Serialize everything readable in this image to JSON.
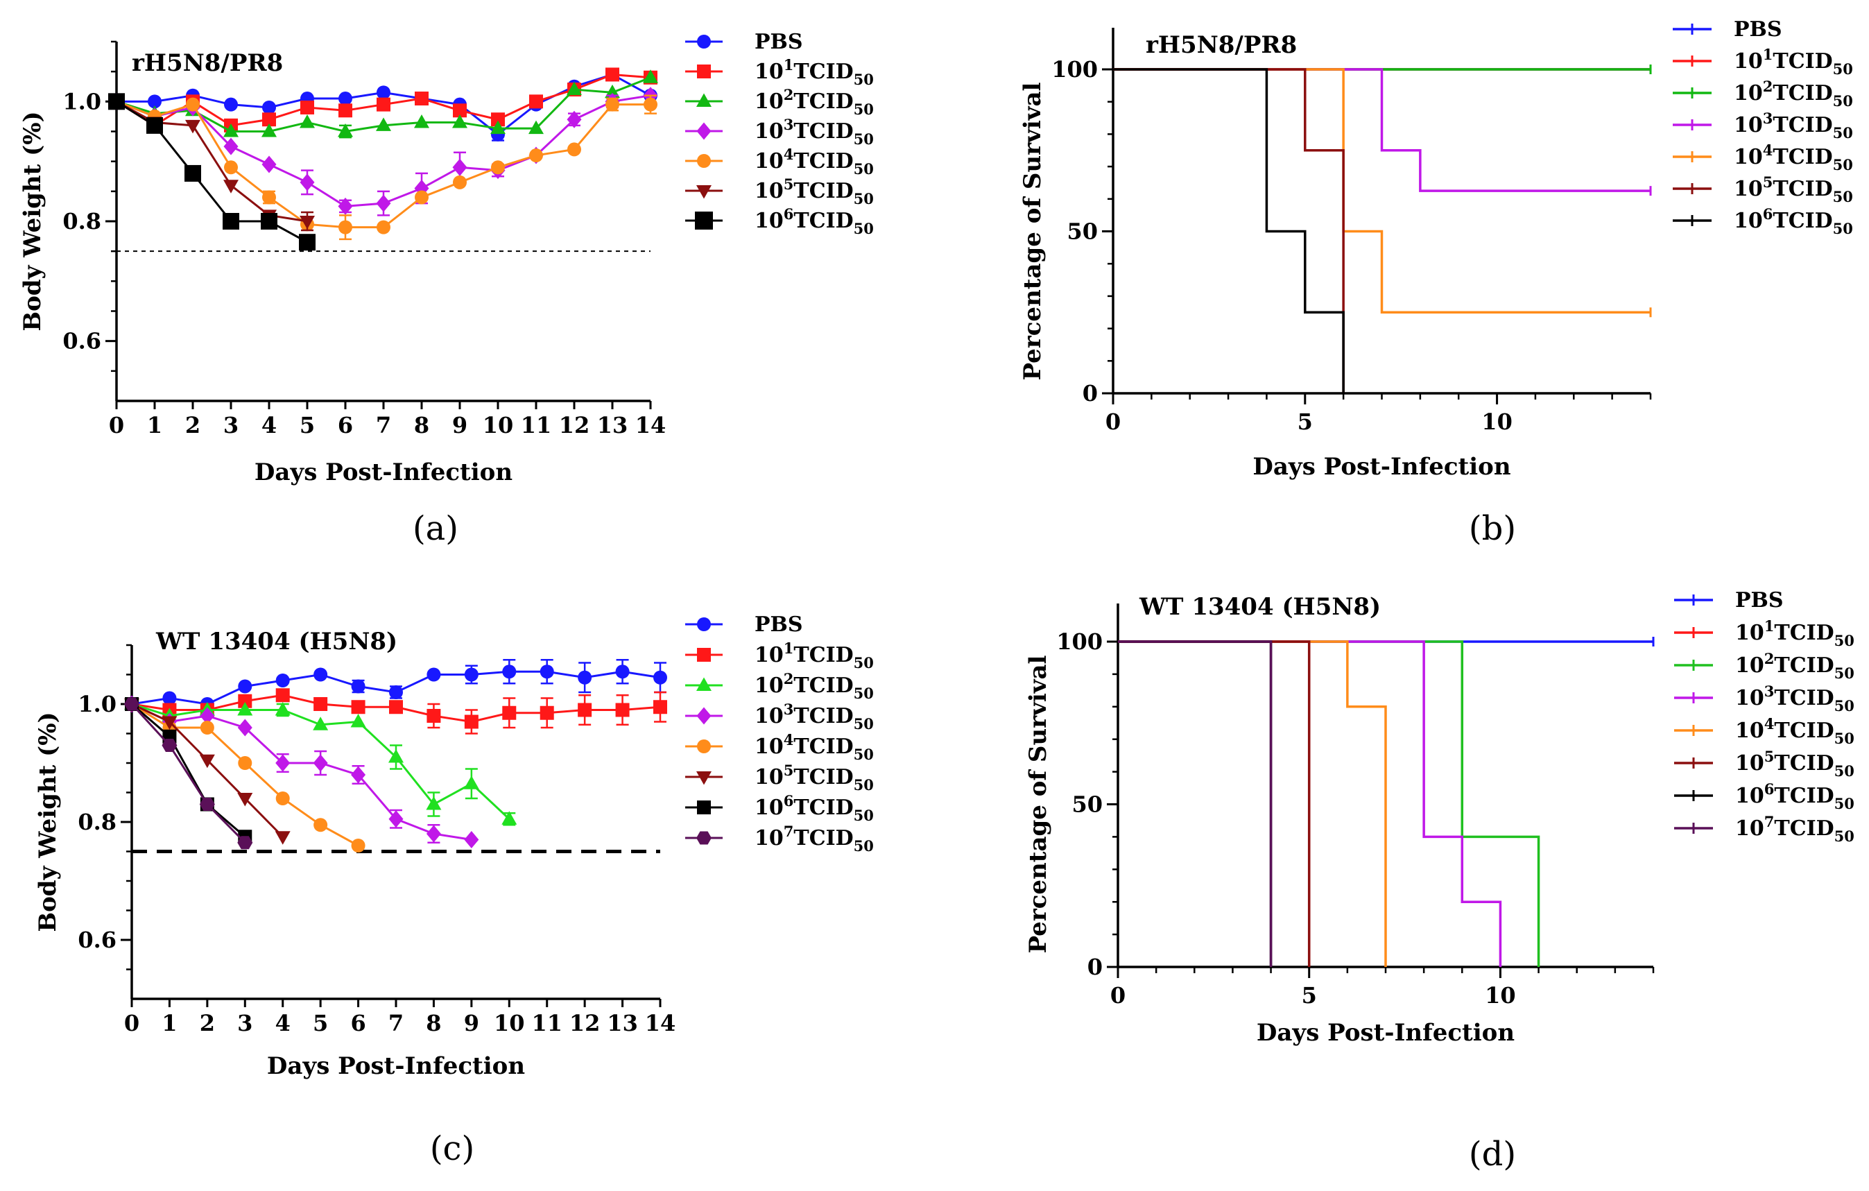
{
  "chart_data": [
    {
      "panel": "(a)",
      "type": "line",
      "title": "rH5N8/PR8",
      "xlabel": "Days Post-Infection",
      "ylabel": "Body Weight (%)",
      "xlim": [
        0,
        14
      ],
      "ylim": [
        0.5,
        1.1
      ],
      "xticks": [
        0,
        1,
        2,
        3,
        4,
        5,
        6,
        7,
        8,
        9,
        10,
        11,
        12,
        13,
        14
      ],
      "yticks": [
        0.6,
        0.8,
        1.0
      ],
      "threshold": 0.75,
      "series": [
        {
          "name": "PBS",
          "base": "",
          "sup": "",
          "sub": "",
          "color": "#1818ff",
          "marker": "circle",
          "x": [
            0,
            1,
            2,
            3,
            4,
            5,
            6,
            7,
            8,
            9,
            10,
            11,
            12,
            13,
            14
          ],
          "y": [
            1.0,
            1.0,
            1.01,
            0.995,
            0.99,
            1.005,
            1.005,
            1.015,
            1.005,
            0.995,
            0.945,
            0.995,
            1.025,
            1.045,
            1.01
          ],
          "err": [
            0,
            0,
            0,
            0,
            0,
            0,
            0,
            0,
            0,
            0,
            0.01,
            0,
            0,
            0,
            0
          ]
        },
        {
          "name": "10^1 TCID50",
          "base": "10",
          "sup": "1",
          "sub": "50",
          "color": "#ff1818",
          "marker": "square",
          "x": [
            0,
            1,
            2,
            3,
            4,
            5,
            6,
            7,
            8,
            9,
            10,
            11,
            12,
            13,
            14
          ],
          "y": [
            1.0,
            0.96,
            1.0,
            0.96,
            0.97,
            0.99,
            0.985,
            0.995,
            1.005,
            0.985,
            0.97,
            1.0,
            1.02,
            1.045,
            1.04
          ],
          "err": [
            0,
            0,
            0,
            0,
            0,
            0,
            0,
            0,
            0,
            0,
            0,
            0,
            0,
            0,
            0
          ]
        },
        {
          "name": "10^2 TCID50",
          "base": "10",
          "sup": "2",
          "sub": "50",
          "color": "#12b812",
          "marker": "triangle-up",
          "x": [
            0,
            1,
            2,
            3,
            4,
            5,
            6,
            7,
            8,
            9,
            10,
            11,
            12,
            13,
            14
          ],
          "y": [
            1.0,
            0.98,
            0.985,
            0.95,
            0.95,
            0.965,
            0.95,
            0.96,
            0.965,
            0.965,
            0.955,
            0.955,
            1.02,
            1.015,
            1.04
          ],
          "err": [
            0,
            0,
            0,
            0,
            0,
            0,
            0.01,
            0,
            0,
            0,
            0,
            0,
            0,
            0,
            0
          ]
        },
        {
          "name": "10^3 TCID50",
          "base": "10",
          "sup": "3",
          "sub": "50",
          "color": "#c018e8",
          "marker": "diamond",
          "x": [
            0,
            1,
            2,
            3,
            4,
            5,
            6,
            7,
            8,
            9,
            10,
            11,
            12,
            13,
            14
          ],
          "y": [
            1.0,
            0.975,
            0.99,
            0.925,
            0.895,
            0.865,
            0.825,
            0.83,
            0.855,
            0.89,
            0.885,
            0.91,
            0.97,
            1.0,
            1.01
          ],
          "err": [
            0,
            0,
            0,
            0,
            0,
            0.02,
            0.01,
            0.02,
            0.025,
            0.025,
            0.01,
            0,
            0.01,
            0.01,
            0
          ]
        },
        {
          "name": "10^4 TCID50",
          "base": "10",
          "sup": "4",
          "sub": "50",
          "color": "#ff8c1a",
          "marker": "circle",
          "x": [
            0,
            1,
            2,
            3,
            4,
            5,
            6,
            7,
            8,
            9,
            10,
            11,
            12,
            13,
            14
          ],
          "y": [
            1.0,
            0.975,
            0.995,
            0.89,
            0.84,
            0.795,
            0.79,
            0.79,
            0.84,
            0.865,
            0.89,
            0.91,
            0.92,
            0.995,
            0.995
          ],
          "err": [
            0,
            0,
            0,
            0,
            0.01,
            0,
            0.02,
            0,
            0,
            0,
            0,
            0,
            0,
            0.01,
            0.015
          ]
        },
        {
          "name": "10^5 TCID50",
          "base": "10",
          "sup": "5",
          "sub": "50",
          "color": "#8b0f0f",
          "marker": "triangle-down",
          "x": [
            0,
            1,
            2,
            3,
            4,
            5
          ],
          "y": [
            1.0,
            0.965,
            0.96,
            0.86,
            0.81,
            0.8
          ],
          "err": [
            0,
            0,
            0,
            0,
            0,
            0.015
          ]
        },
        {
          "name": "10^6 TCID50",
          "base": "10",
          "sup": "6",
          "sub": "50",
          "color": "#000000",
          "marker": "square",
          "x": [
            0,
            1,
            2,
            3,
            4,
            5
          ],
          "y": [
            1.0,
            0.96,
            0.88,
            0.8,
            0.8,
            0.765
          ],
          "err": [
            0,
            0,
            0,
            0,
            0,
            0
          ]
        }
      ]
    },
    {
      "panel": "(b)",
      "type": "line",
      "title": "rH5N8/PR8",
      "xlabel": "Days Post-Infection",
      "ylabel": "Percentage of Survival",
      "xlim": [
        0,
        14
      ],
      "ylim": [
        0,
        100
      ],
      "xticks": [
        0,
        5,
        10
      ],
      "yticks": [
        0,
        50,
        100
      ],
      "series": [
        {
          "name": "PBS",
          "base": "",
          "sup": "",
          "sub": "",
          "color": "#1818ff",
          "steps": [
            [
              0,
              100
            ],
            [
              14,
              100
            ]
          ]
        },
        {
          "name": "10^1 TCID50",
          "base": "10",
          "sup": "1",
          "sub": "50",
          "color": "#ff1818",
          "steps": [
            [
              0,
              100
            ],
            [
              14,
              100
            ]
          ]
        },
        {
          "name": "10^2 TCID50",
          "base": "10",
          "sup": "2",
          "sub": "50",
          "color": "#12b812",
          "steps": [
            [
              0,
              100
            ],
            [
              14,
              100
            ]
          ]
        },
        {
          "name": "10^3 TCID50",
          "base": "10",
          "sup": "3",
          "sub": "50",
          "color": "#c018e8",
          "steps": [
            [
              0,
              100
            ],
            [
              7,
              75
            ],
            [
              8,
              62.5
            ],
            [
              14,
              62.5
            ]
          ]
        },
        {
          "name": "10^4 TCID50",
          "base": "10",
          "sup": "4",
          "sub": "50",
          "color": "#ff8c1a",
          "steps": [
            [
              0,
              100
            ],
            [
              6,
              50
            ],
            [
              7,
              25
            ],
            [
              14,
              25
            ]
          ]
        },
        {
          "name": "10^5 TCID50",
          "base": "10",
          "sup": "5",
          "sub": "50",
          "color": "#8b0f0f",
          "steps": [
            [
              0,
              100
            ],
            [
              5,
              75
            ],
            [
              6,
              0
            ]
          ]
        },
        {
          "name": "10^6 TCID50",
          "base": "10",
          "sup": "6",
          "sub": "50",
          "color": "#000000",
          "steps": [
            [
              0,
              100
            ],
            [
              4,
              50
            ],
            [
              5,
              25
            ],
            [
              6,
              0
            ]
          ]
        }
      ]
    },
    {
      "panel": "(c)",
      "type": "line",
      "title": "WT 13404 (H5N8)",
      "xlabel": "Days Post-Infection",
      "ylabel": "Body Weight (%)",
      "xlim": [
        0,
        14
      ],
      "ylim": [
        0.5,
        1.1
      ],
      "xticks": [
        0,
        1,
        2,
        3,
        4,
        5,
        6,
        7,
        8,
        9,
        10,
        11,
        12,
        13,
        14
      ],
      "yticks": [
        0.6,
        0.8,
        1.0
      ],
      "threshold": 0.75,
      "series": [
        {
          "name": "PBS",
          "base": "",
          "sup": "",
          "sub": "",
          "color": "#1818ff",
          "marker": "circle",
          "x": [
            0,
            1,
            2,
            3,
            4,
            5,
            6,
            7,
            8,
            9,
            10,
            11,
            12,
            13,
            14
          ],
          "y": [
            1.0,
            1.01,
            1.0,
            1.03,
            1.04,
            1.05,
            1.03,
            1.02,
            1.05,
            1.05,
            1.055,
            1.055,
            1.045,
            1.055,
            1.045
          ],
          "err": [
            0,
            0,
            0,
            0,
            0,
            0,
            0.01,
            0.01,
            0,
            0.015,
            0.02,
            0.02,
            0.025,
            0.02,
            0.025
          ]
        },
        {
          "name": "10^1 TCID50",
          "base": "10",
          "sup": "1",
          "sub": "50",
          "color": "#ff1818",
          "marker": "square",
          "x": [
            0,
            1,
            2,
            3,
            4,
            5,
            6,
            7,
            8,
            9,
            10,
            11,
            12,
            13,
            14
          ],
          "y": [
            1.0,
            0.99,
            0.99,
            1.005,
            1.015,
            1.0,
            0.995,
            0.995,
            0.98,
            0.97,
            0.985,
            0.985,
            0.99,
            0.99,
            0.995
          ],
          "err": [
            0,
            0,
            0,
            0,
            0,
            0,
            0,
            0,
            0.02,
            0.02,
            0.025,
            0.025,
            0.025,
            0.025,
            0.025
          ]
        },
        {
          "name": "10^2 TCID50",
          "base": "10",
          "sup": "2",
          "sub": "50",
          "color": "#20e020",
          "marker": "triangle-up",
          "x": [
            0,
            1,
            2,
            3,
            4,
            5,
            6,
            7,
            8,
            9,
            10
          ],
          "y": [
            1.0,
            0.98,
            0.99,
            0.99,
            0.99,
            0.965,
            0.97,
            0.91,
            0.83,
            0.865,
            0.805
          ],
          "err": [
            0,
            0,
            0,
            0,
            0.01,
            0,
            0,
            0.02,
            0.02,
            0.025,
            0.01
          ]
        },
        {
          "name": "10^3 TCID50",
          "base": "10",
          "sup": "3",
          "sub": "50",
          "color": "#c018e8",
          "marker": "diamond",
          "x": [
            0,
            1,
            2,
            3,
            4,
            5,
            6,
            7,
            8,
            9
          ],
          "y": [
            1.0,
            0.97,
            0.98,
            0.96,
            0.9,
            0.9,
            0.88,
            0.805,
            0.78,
            0.77
          ],
          "err": [
            0,
            0,
            0,
            0,
            0.015,
            0.02,
            0.015,
            0.015,
            0.015,
            0
          ]
        },
        {
          "name": "10^4 TCID50",
          "base": "10",
          "sup": "4",
          "sub": "50",
          "color": "#ff8c1a",
          "marker": "circle",
          "x": [
            0,
            1,
            2,
            3,
            4,
            5,
            6
          ],
          "y": [
            1.0,
            0.96,
            0.96,
            0.9,
            0.84,
            0.795,
            0.76
          ],
          "err": [
            0,
            0,
            0,
            0,
            0,
            0,
            0
          ]
        },
        {
          "name": "10^5 TCID50",
          "base": "10",
          "sup": "5",
          "sub": "50",
          "color": "#8b0f0f",
          "marker": "triangle-down",
          "x": [
            0,
            1,
            2,
            3,
            4
          ],
          "y": [
            1.0,
            0.97,
            0.905,
            0.84,
            0.775
          ],
          "err": [
            0,
            0,
            0,
            0,
            0
          ]
        },
        {
          "name": "10^6 TCID50",
          "base": "10",
          "sup": "6",
          "sub": "50",
          "color": "#000000",
          "marker": "square",
          "x": [
            0,
            1,
            2,
            3
          ],
          "y": [
            1.0,
            0.945,
            0.83,
            0.775
          ],
          "err": [
            0,
            0,
            0,
            0
          ]
        },
        {
          "name": "10^7 TCID50",
          "base": "10",
          "sup": "7",
          "sub": "50",
          "color": "#5a1058",
          "marker": "hexagon",
          "x": [
            0,
            1,
            2,
            3
          ],
          "y": [
            1.0,
            0.93,
            0.83,
            0.765
          ],
          "err": [
            0,
            0,
            0,
            0
          ]
        }
      ]
    },
    {
      "panel": "(d)",
      "type": "line",
      "title": "WT 13404 (H5N8)",
      "xlabel": "Days Post-Infection",
      "ylabel": "Percentage of Survival",
      "xlim": [
        0,
        14
      ],
      "ylim": [
        0,
        100
      ],
      "xticks": [
        0,
        5,
        10
      ],
      "yticks": [
        0,
        50,
        100
      ],
      "series": [
        {
          "name": "PBS",
          "base": "",
          "sup": "",
          "sub": "",
          "color": "#1818ff",
          "steps": [
            [
              0,
              100
            ],
            [
              14,
              100
            ]
          ]
        },
        {
          "name": "10^1 TCID50",
          "base": "10",
          "sup": "1",
          "sub": "50",
          "color": "#ff1818",
          "steps": [
            [
              0,
              100
            ],
            [
              5,
              0
            ]
          ]
        },
        {
          "name": "10^2 TCID50",
          "base": "10",
          "sup": "2",
          "sub": "50",
          "color": "#20c020",
          "steps": [
            [
              0,
              100
            ],
            [
              9,
              40
            ],
            [
              11,
              0
            ]
          ]
        },
        {
          "name": "10^3 TCID50",
          "base": "10",
          "sup": "3",
          "sub": "50",
          "color": "#c018e8",
          "steps": [
            [
              0,
              100
            ],
            [
              8,
              40
            ],
            [
              9,
              20
            ],
            [
              10,
              0
            ]
          ]
        },
        {
          "name": "10^4 TCID50",
          "base": "10",
          "sup": "4",
          "sub": "50",
          "color": "#ff8c1a",
          "steps": [
            [
              0,
              100
            ],
            [
              6,
              80
            ],
            [
              7,
              0
            ]
          ]
        },
        {
          "name": "10^5 TCID50",
          "base": "10",
          "sup": "5",
          "sub": "50",
          "color": "#8b0f0f",
          "steps": [
            [
              0,
              100
            ],
            [
              5,
              0
            ]
          ]
        },
        {
          "name": "10^6 TCID50",
          "base": "10",
          "sup": "6",
          "sub": "50",
          "color": "#000000",
          "steps": [
            [
              0,
              100
            ],
            [
              4,
              0
            ]
          ]
        },
        {
          "name": "10^7 TCID50",
          "base": "10",
          "sup": "7",
          "sub": "50",
          "color": "#5a1058",
          "steps": [
            [
              0,
              100
            ],
            [
              4,
              0
            ]
          ]
        }
      ]
    }
  ]
}
